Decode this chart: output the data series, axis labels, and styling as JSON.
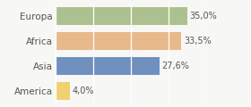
{
  "categories": [
    "Europa",
    "Africa",
    "Asia",
    "America"
  ],
  "values": [
    35.0,
    33.5,
    27.6,
    4.0
  ],
  "labels": [
    "35,0%",
    "33,5%",
    "27,6%",
    "4,0%"
  ],
  "bar_colors": [
    "#adc190",
    "#e8b98a",
    "#7090bf",
    "#f0d070"
  ],
  "background_color": "#f7f7f5",
  "xlim": [
    0,
    40
  ],
  "bar_height": 0.72,
  "label_fontsize": 7.0,
  "category_fontsize": 7.5,
  "text_color": "#555555"
}
